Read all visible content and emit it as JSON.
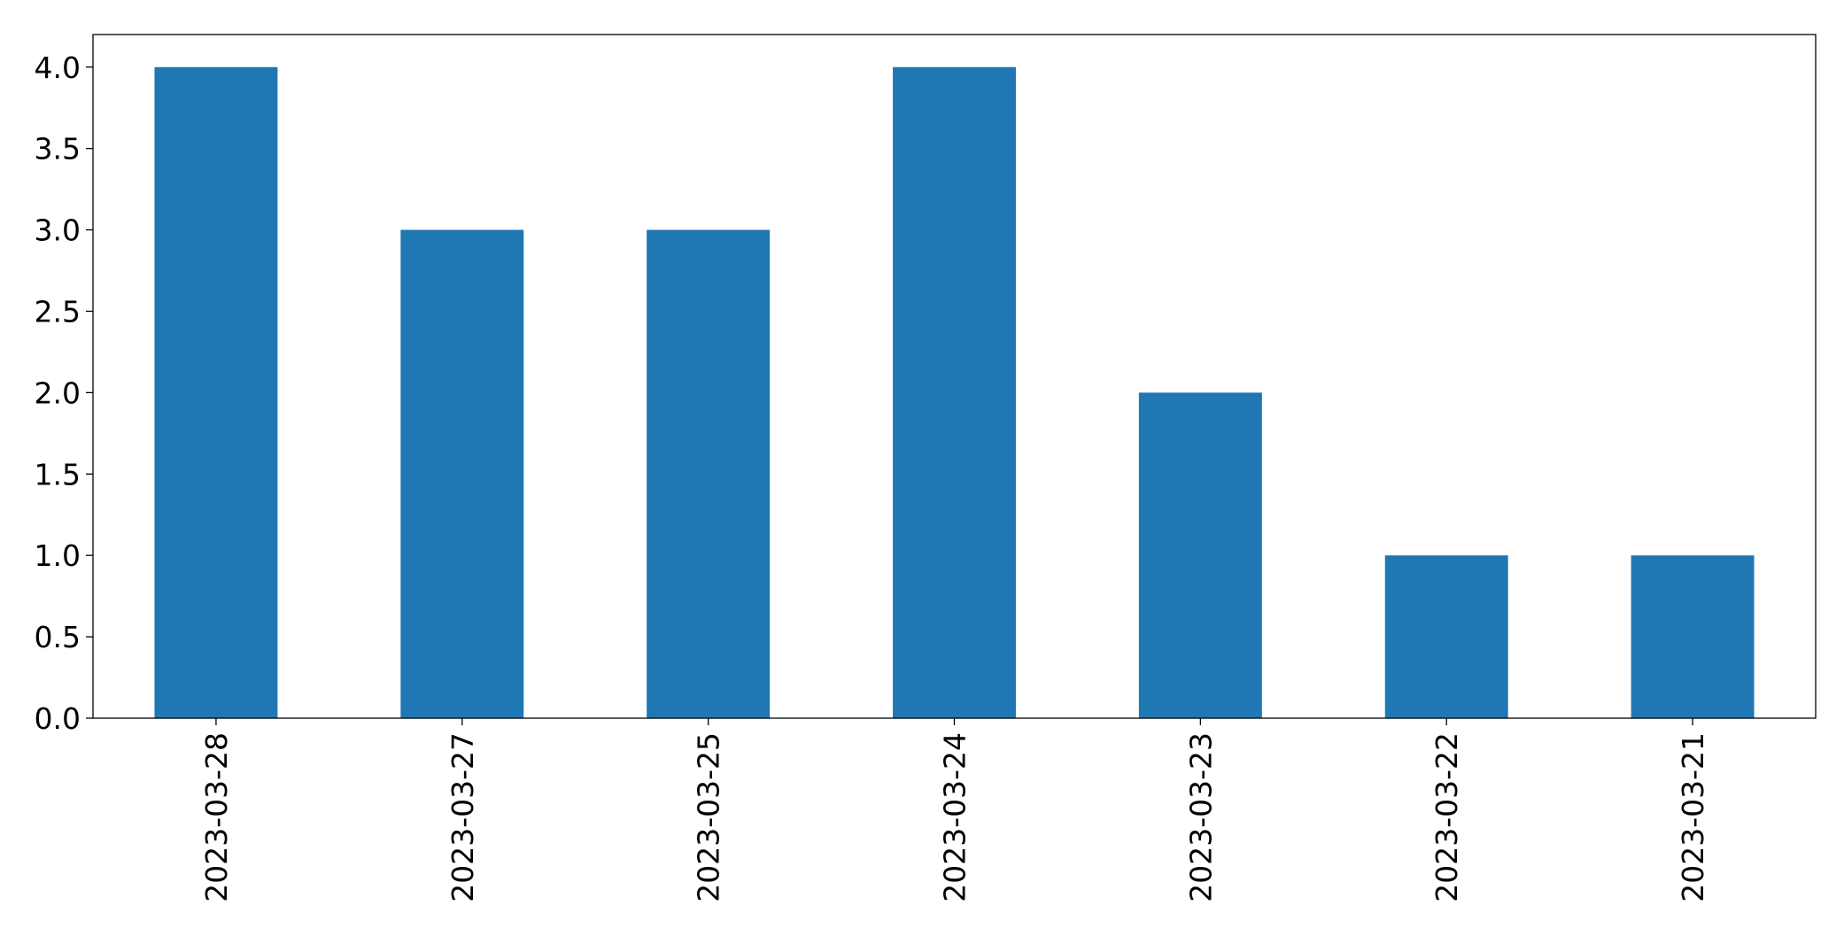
{
  "chart_data": {
    "type": "bar",
    "categories": [
      "2023-03-28",
      "2023-03-27",
      "2023-03-25",
      "2023-03-24",
      "2023-03-23",
      "2023-03-22",
      "2023-03-21"
    ],
    "values": [
      4,
      3,
      3,
      4,
      2,
      1,
      1
    ],
    "title": "",
    "xlabel": "",
    "ylabel": "",
    "ylim": [
      0,
      4.2
    ],
    "yticks": [
      0.0,
      0.5,
      1.0,
      1.5,
      2.0,
      2.5,
      3.0,
      3.5,
      4.0
    ],
    "ytick_labels": [
      "0.0",
      "0.5",
      "1.0",
      "1.5",
      "2.0",
      "2.5",
      "3.0",
      "3.5",
      "4.0"
    ],
    "bar_color": "#1f77b4",
    "grid": false,
    "legend": "none"
  }
}
